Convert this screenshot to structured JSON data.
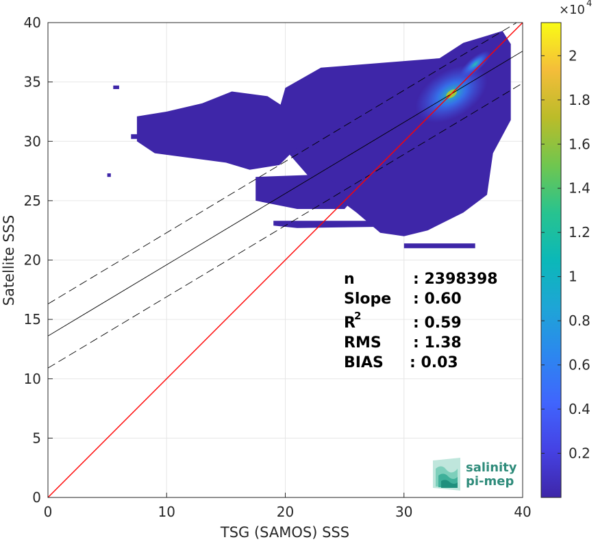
{
  "chart_data": {
    "type": "heatmap",
    "xlabel": "TSG (SAMOS) SSS",
    "ylabel": "Satellite SSS",
    "xlim": [
      0,
      40
    ],
    "ylim": [
      0,
      40
    ],
    "xticks": [
      "0",
      "10",
      "20",
      "30",
      "40"
    ],
    "yticks": [
      "0",
      "5",
      "10",
      "15",
      "20",
      "25",
      "30",
      "35",
      "40"
    ],
    "grid": true,
    "colorbar": {
      "range": [
        0,
        21500
      ],
      "multiplier": "×10",
      "exponent": "4",
      "tick_values": [
        0.2,
        0.4,
        0.6,
        0.8,
        1,
        1.2,
        1.4,
        1.6,
        1.8,
        2
      ],
      "tick_labels": [
        "0.2",
        "0.4",
        "0.6",
        "0.8",
        "1",
        "1.2",
        "1.4",
        "1.6",
        "1.8",
        "2"
      ]
    },
    "lines": {
      "identity": {
        "slope": 1,
        "intercept": 0,
        "color": "#ff0000"
      },
      "fit": {
        "slope": 0.6,
        "intercept": 13.6,
        "color": "#000000"
      },
      "fit_upper": {
        "slope": 0.6,
        "intercept": 16.3,
        "style": "dashed"
      },
      "fit_lower": {
        "slope": 0.6,
        "intercept": 10.9,
        "style": "dashed"
      }
    },
    "density_peak": {
      "x": 34,
      "y": 34
    }
  },
  "stats": {
    "n_label": "n",
    "n_value": ": 2398398",
    "slope_label": "Slope",
    "slope_value": ": 0.60",
    "r2_label": "R",
    "r2_exp": "2",
    "r2_value": ": 0.59",
    "rms_label": "RMS",
    "rms_value": ": 1.38",
    "bias_label": "BIAS",
    "bias_value": ": 0.03"
  },
  "logo": {
    "line1": "salinity",
    "line2": "pi-mep"
  },
  "colors": {
    "low": "#3e26a8",
    "identity_line": "#ff0000"
  }
}
